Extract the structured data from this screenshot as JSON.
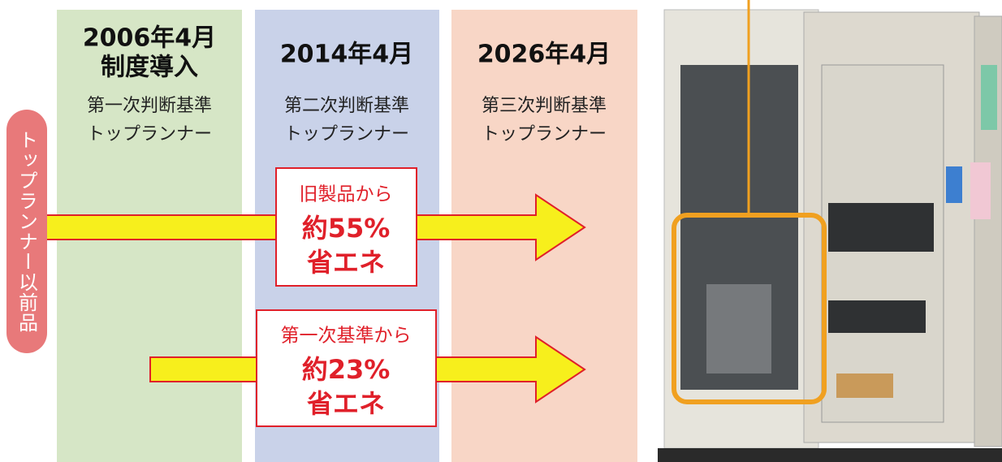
{
  "columns": [
    {
      "heading": [
        "2006年4月",
        "制度導入"
      ],
      "subheading": [
        "第一次判断基準",
        "トップランナー"
      ]
    },
    {
      "heading": [
        "2014年4月"
      ],
      "subheading": [
        "第二次判断基準",
        "トップランナー"
      ]
    },
    {
      "heading": [
        "2026年4月"
      ],
      "subheading": [
        "第三次判断基準",
        "トップランナー"
      ]
    }
  ],
  "side_label": "トップランナー以前品",
  "callouts": [
    {
      "lines": [
        "旧製品から",
        "約55%",
        "省エネ"
      ]
    },
    {
      "lines": [
        "第一次基準から",
        "約23%",
        "省エネ"
      ]
    }
  ]
}
